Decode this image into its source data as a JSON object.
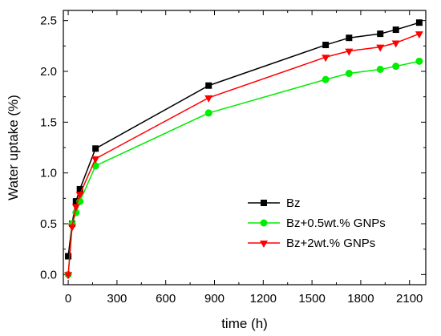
{
  "chart_data": {
    "type": "line",
    "xlabel": "time (h)",
    "ylabel": "Water uptake (%)",
    "xlim": [
      -30,
      2200
    ],
    "ylim": [
      -0.1,
      2.6
    ],
    "xticks": [
      0,
      300,
      600,
      900,
      1200,
      1500,
      1800,
      2100
    ],
    "yticks": [
      0.0,
      0.5,
      1.0,
      1.5,
      2.0,
      2.5
    ],
    "xtick_labels": [
      "0",
      "300",
      "600",
      "900",
      "1200",
      "1500",
      "1800",
      "2100"
    ],
    "ytick_labels": [
      "0.0",
      "0.5",
      "1.0",
      "1.5",
      "2.0",
      "2.5"
    ],
    "legend_position": "bottom-right",
    "grid": false,
    "series": [
      {
        "name": "Bz",
        "color": "#000000",
        "marker": "square",
        "x": [
          0,
          24,
          48,
          72,
          168,
          864,
          1584,
          1728,
          1920,
          2016,
          2160
        ],
        "y": [
          0.18,
          0.5,
          0.72,
          0.84,
          1.24,
          1.86,
          2.26,
          2.33,
          2.37,
          2.41,
          2.48
        ]
      },
      {
        "name": "Bz+0.5wt.% GNPs",
        "color": "#00ee00",
        "marker": "circle",
        "x": [
          0,
          24,
          48,
          72,
          168,
          864,
          1584,
          1728,
          1920,
          2016,
          2160
        ],
        "y": [
          0.0,
          0.5,
          0.61,
          0.72,
          1.07,
          1.59,
          1.92,
          1.98,
          2.02,
          2.05,
          2.1
        ]
      },
      {
        "name": "Bz+2wt.% GNPs",
        "color": "#ff0000",
        "marker": "triangle-down",
        "x": [
          0,
          24,
          48,
          72,
          168,
          864,
          1584,
          1728,
          1920,
          2016,
          2160
        ],
        "y": [
          0.0,
          0.47,
          0.67,
          0.79,
          1.14,
          1.74,
          2.14,
          2.2,
          2.24,
          2.28,
          2.37
        ]
      }
    ]
  }
}
